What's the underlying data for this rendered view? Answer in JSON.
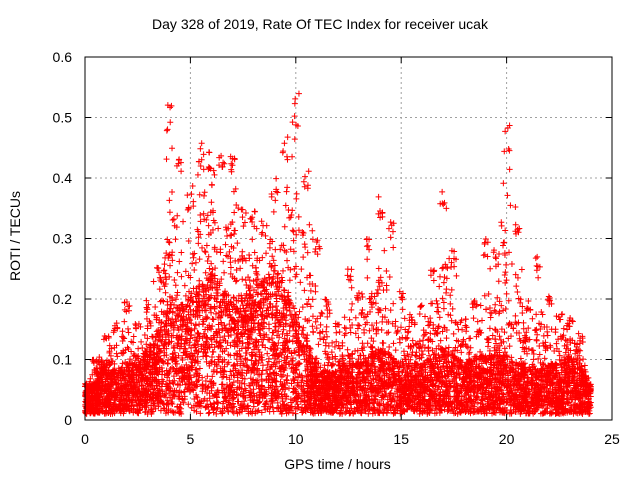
{
  "chart_data": {
    "type": "scatter",
    "title": "Day 328 of 2019, Rate Of TEC Index for receiver ucak",
    "xlabel": "GPS time / hours",
    "ylabel": "ROTI / TECUs",
    "xlim": [
      0,
      25
    ],
    "ylim": [
      0,
      0.6
    ],
    "x_ticks": [
      "0",
      "5",
      "10",
      "15",
      "20",
      "25"
    ],
    "y_ticks": [
      "0",
      "0.1",
      "0.2",
      "0.3",
      "0.4",
      "0.5",
      "0.6"
    ],
    "grid": true,
    "marker": "+",
    "series": [
      {
        "color": "#ff0000",
        "envelope_note_x_hours": [
          0,
          0.5,
          1,
          1.5,
          2,
          2.5,
          3,
          3.5,
          4,
          4.5,
          5,
          5.5,
          6,
          6.5,
          7,
          7.5,
          8,
          8.5,
          9,
          9.5,
          10,
          10.5,
          11,
          11.5,
          12,
          12.5,
          13,
          13.5,
          14,
          14.5,
          15,
          15.5,
          16,
          16.5,
          17,
          17.5,
          18,
          18.5,
          19,
          19.5,
          20,
          20.5,
          21,
          21.5,
          22,
          22.5,
          23,
          23.5,
          24
        ],
        "upper_envelope": [
          0.06,
          0.1,
          0.14,
          0.16,
          0.2,
          0.16,
          0.2,
          0.26,
          0.53,
          0.45,
          0.38,
          0.46,
          0.45,
          0.44,
          0.44,
          0.35,
          0.35,
          0.33,
          0.4,
          0.47,
          0.54,
          0.42,
          0.3,
          0.2,
          0.16,
          0.25,
          0.22,
          0.3,
          0.37,
          0.33,
          0.22,
          0.17,
          0.19,
          0.25,
          0.38,
          0.28,
          0.17,
          0.2,
          0.3,
          0.28,
          0.49,
          0.33,
          0.2,
          0.27,
          0.21,
          0.18,
          0.17,
          0.14,
          0.06
        ],
        "typical_level": [
          0.03,
          0.04,
          0.06,
          0.05,
          0.06,
          0.06,
          0.08,
          0.1,
          0.14,
          0.13,
          0.14,
          0.16,
          0.17,
          0.15,
          0.13,
          0.14,
          0.15,
          0.16,
          0.17,
          0.15,
          0.12,
          0.09,
          0.06,
          0.05,
          0.05,
          0.07,
          0.06,
          0.07,
          0.08,
          0.07,
          0.06,
          0.06,
          0.06,
          0.07,
          0.08,
          0.07,
          0.06,
          0.07,
          0.07,
          0.07,
          0.07,
          0.06,
          0.06,
          0.05,
          0.06,
          0.06,
          0.07,
          0.06,
          0.03
        ]
      }
    ]
  }
}
